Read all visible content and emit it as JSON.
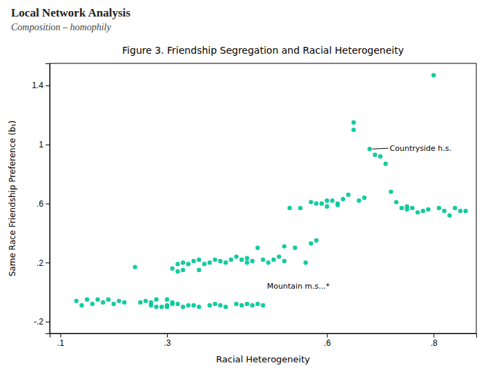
{
  "chart_data": {
    "type": "scatter",
    "header": {
      "title": "Local Network Analysis",
      "subtitle": "Composition – homophily"
    },
    "title": "Figure 3.  Friendship Segregation and Racial Heterogeneity",
    "xlabel": "Racial Heterogeneity",
    "ylabel": "Same Race Friendship Preference (b₁)",
    "color": "#00c896",
    "marker": "circle",
    "grid": false,
    "xlim": [
      0.08,
      0.88
    ],
    "ylim": [
      -0.28,
      1.55
    ],
    "xticks": [
      {
        "value": 0.1,
        "label": ".1"
      },
      {
        "value": 0.3,
        "label": ".3"
      },
      {
        "value": 0.6,
        "label": ".6"
      },
      {
        "value": 0.8,
        "label": ".8"
      }
    ],
    "yticks": [
      {
        "value": -0.2,
        "label": "-.2"
      },
      {
        "value": 0.2,
        "label": ".2"
      },
      {
        "value": 0.6,
        "label": ".6"
      },
      1,
      1.4
    ],
    "annotations": [
      {
        "text": "Countryside h.s.",
        "x": 0.715,
        "y": 0.975,
        "xy": [
          0.685,
          0.97
        ]
      },
      {
        "text": "Mountain m.s...*",
        "x": 0.485,
        "y": 0.04
      }
    ],
    "x": [
      0.13,
      0.14,
      0.15,
      0.16,
      0.17,
      0.18,
      0.19,
      0.2,
      0.21,
      0.22,
      0.24,
      0.25,
      0.26,
      0.27,
      0.27,
      0.28,
      0.29,
      0.3,
      0.3,
      0.31,
      0.31,
      0.32,
      0.32,
      0.33,
      0.33,
      0.34,
      0.35,
      0.36,
      0.36,
      0.37,
      0.38,
      0.39,
      0.4,
      0.41,
      0.42,
      0.43,
      0.44,
      0.45,
      0.45,
      0.46,
      0.47,
      0.48,
      0.49,
      0.5,
      0.51,
      0.52,
      0.52,
      0.53,
      0.54,
      0.55,
      0.56,
      0.57,
      0.57,
      0.58,
      0.58,
      0.59,
      0.6,
      0.6,
      0.61,
      0.62,
      0.62,
      0.63,
      0.64,
      0.65,
      0.65,
      0.66,
      0.67,
      0.68,
      0.69,
      0.7,
      0.71,
      0.72,
      0.73,
      0.74,
      0.75,
      0.75,
      0.76,
      0.77,
      0.78,
      0.79,
      0.8,
      0.81,
      0.82,
      0.83,
      0.84,
      0.85,
      0.86,
      0.28,
      0.3,
      0.31,
      0.32,
      0.33,
      0.34,
      0.35,
      0.36,
      0.38,
      0.39,
      0.4,
      0.41,
      0.43,
      0.44,
      0.45,
      0.46,
      0.47,
      0.48
    ],
    "values": [
      -0.06,
      -0.09,
      -0.05,
      -0.08,
      -0.05,
      -0.07,
      -0.05,
      -0.08,
      -0.06,
      -0.07,
      0.17,
      -0.07,
      -0.06,
      -0.09,
      -0.07,
      -0.05,
      -0.1,
      -0.09,
      -0.05,
      -0.07,
      0.16,
      0.19,
      0.14,
      0.2,
      0.15,
      0.19,
      0.21,
      0.22,
      0.15,
      0.19,
      0.2,
      0.22,
      0.21,
      0.2,
      0.22,
      0.24,
      0.22,
      0.23,
      0.2,
      0.21,
      0.3,
      0.22,
      0.2,
      0.22,
      0.24,
      0.31,
      0.21,
      0.57,
      0.3,
      0.57,
      0.2,
      0.61,
      0.33,
      0.35,
      0.6,
      0.6,
      0.62,
      0.58,
      0.62,
      0.59,
      0.6,
      0.63,
      0.66,
      1.15,
      1.1,
      0.62,
      0.64,
      0.97,
      0.93,
      0.92,
      0.87,
      0.68,
      0.61,
      0.57,
      0.56,
      0.58,
      0.57,
      0.54,
      0.55,
      0.56,
      1.47,
      0.57,
      0.55,
      0.52,
      0.57,
      0.55,
      0.55,
      -0.1,
      -0.1,
      -0.08,
      -0.08,
      -0.1,
      -0.09,
      -0.09,
      -0.1,
      -0.09,
      -0.08,
      -0.09,
      -0.1,
      -0.08,
      -0.09,
      -0.08,
      -0.09,
      -0.08,
      -0.09
    ]
  }
}
